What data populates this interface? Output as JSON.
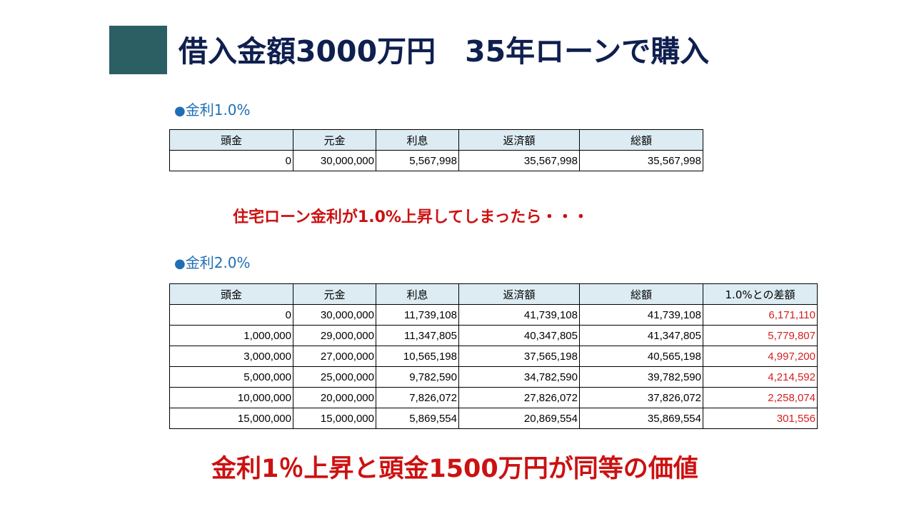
{
  "title": "借入金額3000万円　35年ローンで購入",
  "section1": {
    "bullet": "●",
    "label": "金利1.0%",
    "headers": [
      "頭金",
      "元金",
      "利息",
      "返済額",
      "総額"
    ],
    "rows": [
      [
        "0",
        "30,000,000",
        "5,567,998",
        "35,567,998",
        "35,567,998"
      ]
    ]
  },
  "warning": "住宅ローン金利が1.0%上昇してしまったら・・・",
  "section2": {
    "bullet": "●",
    "label": "金利2.0%",
    "headers": [
      "頭金",
      "元金",
      "利息",
      "返済額",
      "総額",
      "1.0%との差額"
    ],
    "rows": [
      [
        "0",
        "30,000,000",
        "11,739,108",
        "41,739,108",
        "41,739,108",
        "6,171,110"
      ],
      [
        "1,000,000",
        "29,000,000",
        "11,347,805",
        "40,347,805",
        "41,347,805",
        "5,779,807"
      ],
      [
        "3,000,000",
        "27,000,000",
        "10,565,198",
        "37,565,198",
        "40,565,198",
        "4,997,200"
      ],
      [
        "5,000,000",
        "25,000,000",
        "9,782,590",
        "34,782,590",
        "39,782,590",
        "4,214,592"
      ],
      [
        "10,000,000",
        "20,000,000",
        "7,826,072",
        "27,826,072",
        "37,826,072",
        "2,258,074"
      ],
      [
        "15,000,000",
        "15,000,000",
        "5,869,554",
        "20,869,554",
        "35,869,554",
        "301,556"
      ]
    ]
  },
  "conclusion": "金利1％上昇と頭金1500万円が同等の価値",
  "colors": {
    "accent": "#2b5f63",
    "title": "#0f1f4f",
    "section_label": "#1f6fb4",
    "header_bg": "#dcecf2",
    "emphasis_red": "#cc1111"
  }
}
